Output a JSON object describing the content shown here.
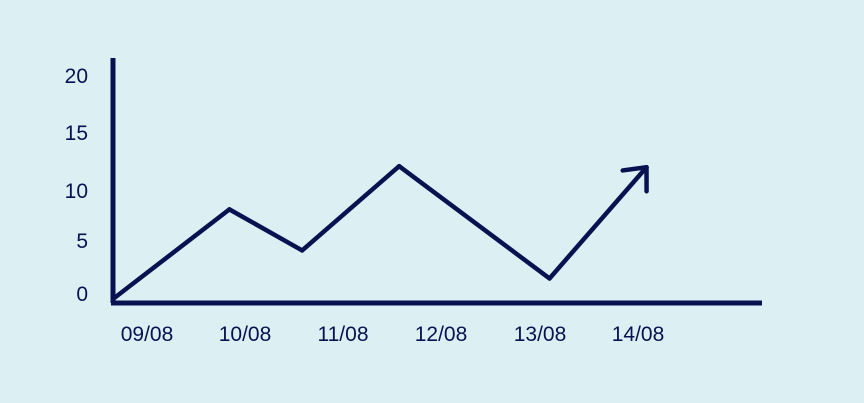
{
  "colors": {
    "background": "#dcf0f4",
    "ink": "#0a1150"
  },
  "chart_data": {
    "type": "line",
    "title": "",
    "xlabel": "",
    "ylabel": "",
    "y_ticks": [
      "0",
      "5",
      "10",
      "15",
      "20"
    ],
    "x_ticks": [
      "09/08",
      "10/08",
      "11/08",
      "12/08",
      "13/08",
      "14/08"
    ],
    "ylim": [
      0,
      20
    ],
    "xlim": [
      0,
      6.1
    ],
    "grid": false,
    "legend": "none",
    "end_marker": "arrow",
    "series": [
      {
        "x": [
          0,
          1.2,
          1.95,
          2.95,
          4.5,
          5.5
        ],
        "y": [
          0,
          8.3,
          4.5,
          12.3,
          1.9,
          12.2
        ]
      }
    ]
  }
}
